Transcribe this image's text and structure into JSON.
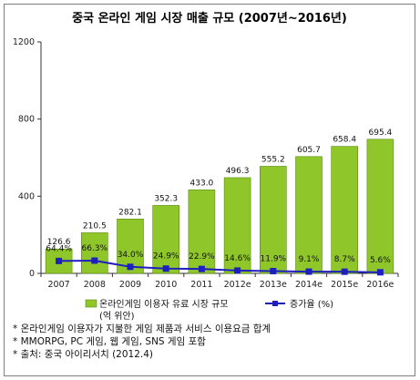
{
  "chart_data": {
    "type": "bar+line",
    "title": "중국 온라인 게임 시장 매출 규모 (2007년~2016년)",
    "categories": [
      "2007",
      "2008",
      "2009",
      "2010",
      "2011",
      "2012e",
      "2013e",
      "2014e",
      "2015e",
      "2016e"
    ],
    "series": [
      {
        "name": "온라인게임 이용자 유료 시장 규모",
        "name_unit": "(억 위안)",
        "type": "bar",
        "values": [
          126.6,
          210.5,
          282.1,
          352.3,
          433.0,
          496.3,
          555.2,
          605.7,
          658.4,
          695.4
        ],
        "labels": [
          "126.6",
          "210.5",
          "282.1",
          "352.3",
          "433.0",
          "496.3",
          "555.2",
          "605.7",
          "658.4",
          "695.4"
        ],
        "color": "#8fc72a"
      },
      {
        "name": "증가율 (%)",
        "type": "line",
        "values": [
          64.4,
          66.3,
          34.0,
          24.9,
          22.9,
          14.6,
          11.9,
          9.1,
          8.7,
          5.6
        ],
        "labels": [
          "64.4%",
          "66.3%",
          "34.0%",
          "24.9%",
          "22.9%",
          "14.6%",
          "11.9%",
          "9.1%",
          "8.7%",
          "5.6%"
        ],
        "color": "#1f1fbf"
      }
    ],
    "yticks": [
      "0",
      "400",
      "800",
      "1200"
    ],
    "ylim": [
      0,
      1200
    ],
    "grid": false,
    "legend": "bottom"
  },
  "notes": [
    "* 온라인게임 이용자가 지불한 게임 제품과 서비스 이용요금 합계",
    "* MMORPG, PC 게임, 웹 게임, SNS 게임 포함",
    "* 출처: 중국 아이리서치 (2012.4)"
  ]
}
